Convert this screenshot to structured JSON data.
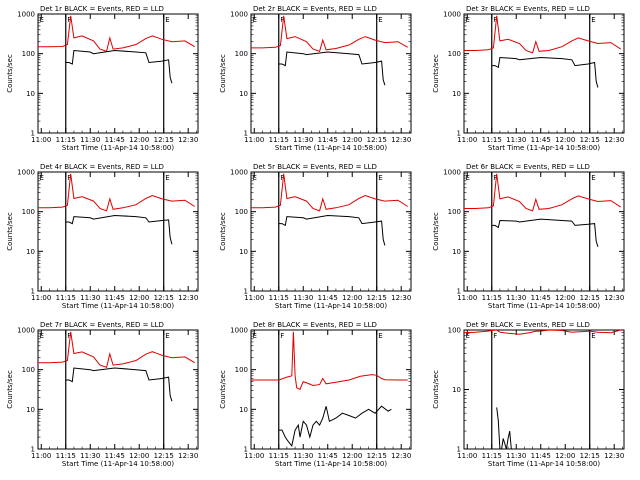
{
  "colors": {
    "events": "#000000",
    "lld": "#e00000",
    "axis": "#000000",
    "background": "#ffffff"
  },
  "chart_data": [
    {
      "type": "line",
      "title": "Det 1r BLACK = Events, RED = LLD",
      "xlabel": "Start Time (11-Apr-14 10:58:00)",
      "ylabel": "Counts/sec",
      "x_ticks": [
        "11:00",
        "11:15",
        "11:30",
        "11:45",
        "12:00",
        "12:15",
        "12:30"
      ],
      "y_ticks": [
        "1",
        "10",
        "100",
        "1000"
      ],
      "y_scale": "log",
      "ylim": [
        1,
        1000
      ],
      "markers": [
        {
          "label": "F",
          "x": "11:15"
        },
        {
          "label": "E",
          "x": "12:15"
        }
      ],
      "series": [
        {
          "color": "red",
          "x": [
            "10:58",
            "11:05",
            "11:13",
            "11:16",
            "11:18",
            "11:20",
            "11:25",
            "11:32",
            "11:36",
            "11:40",
            "11:42",
            "11:44",
            "11:50",
            "11:58",
            "12:04",
            "12:08",
            "12:14",
            "12:20",
            "12:28",
            "12:34"
          ],
          "values": [
            150,
            150,
            152,
            170,
            900,
            250,
            280,
            210,
            130,
            115,
            250,
            130,
            140,
            170,
            240,
            280,
            230,
            200,
            210,
            150
          ]
        },
        {
          "color": "black",
          "x": [
            "11:15",
            "11:17",
            "11:19",
            "11:20",
            "11:30",
            "11:32",
            "11:45",
            "11:58",
            "12:04",
            "12:06",
            "12:14",
            "12:18",
            "12:19",
            "12:20"
          ],
          "values": [
            60,
            60,
            55,
            120,
            110,
            100,
            120,
            110,
            105,
            60,
            65,
            70,
            25,
            18
          ]
        }
      ]
    },
    {
      "type": "line",
      "title": "Det 2r BLACK = Events, RED = LLD",
      "xlabel": "Start Time (11-Apr-14 10:58:00)",
      "ylabel": "Counts/sec",
      "x_ticks": [
        "11:00",
        "11:15",
        "11:30",
        "11:45",
        "12:00",
        "12:15",
        "12:30"
      ],
      "y_ticks": [
        "1",
        "10",
        "100",
        "1000"
      ],
      "y_scale": "log",
      "ylim": [
        1,
        1000
      ],
      "markers": [
        {
          "label": "F",
          "x": "11:15"
        },
        {
          "label": "E",
          "x": "12:15"
        }
      ],
      "series": [
        {
          "color": "red",
          "x": [
            "10:58",
            "11:05",
            "11:13",
            "11:16",
            "11:18",
            "11:20",
            "11:25",
            "11:32",
            "11:36",
            "11:40",
            "11:42",
            "11:44",
            "11:50",
            "11:58",
            "12:04",
            "12:08",
            "12:14",
            "12:20",
            "12:28",
            "12:34"
          ],
          "values": [
            140,
            140,
            145,
            160,
            900,
            240,
            270,
            200,
            130,
            115,
            220,
            125,
            135,
            165,
            230,
            270,
            220,
            190,
            200,
            145
          ]
        },
        {
          "color": "black",
          "x": [
            "11:15",
            "11:17",
            "11:19",
            "11:20",
            "11:30",
            "11:32",
            "11:45",
            "11:58",
            "12:04",
            "12:06",
            "12:14",
            "12:18",
            "12:19",
            "12:20"
          ],
          "values": [
            55,
            55,
            50,
            110,
            100,
            95,
            110,
            100,
            95,
            55,
            60,
            65,
            22,
            16
          ]
        }
      ]
    },
    {
      "type": "line",
      "title": "Det 3r BLACK = Events, RED = LLD",
      "xlabel": "Start Time (11-Apr-14 10:58:00)",
      "ylabel": "Counts/sec",
      "x_ticks": [
        "11:00",
        "11:15",
        "11:30",
        "11:45",
        "12:00",
        "12:15",
        "12:30"
      ],
      "y_ticks": [
        "1",
        "10",
        "100",
        "1000"
      ],
      "y_scale": "log",
      "ylim": [
        1,
        1000
      ],
      "markers": [
        {
          "label": "F",
          "x": "11:15"
        },
        {
          "label": "E",
          "x": "12:15"
        }
      ],
      "series": [
        {
          "color": "red",
          "x": [
            "10:58",
            "11:05",
            "11:13",
            "11:16",
            "11:18",
            "11:20",
            "11:25",
            "11:32",
            "11:36",
            "11:40",
            "11:42",
            "11:44",
            "11:50",
            "11:58",
            "12:04",
            "12:08",
            "12:14",
            "12:20",
            "12:28",
            "12:34"
          ],
          "values": [
            120,
            120,
            125,
            140,
            900,
            210,
            230,
            180,
            120,
            105,
            200,
            115,
            120,
            150,
            210,
            250,
            210,
            180,
            190,
            130
          ]
        },
        {
          "color": "black",
          "x": [
            "11:15",
            "11:17",
            "11:19",
            "11:20",
            "11:30",
            "11:32",
            "11:45",
            "11:58",
            "12:04",
            "12:06",
            "12:14",
            "12:18",
            "12:19",
            "12:20"
          ],
          "values": [
            50,
            50,
            45,
            80,
            75,
            70,
            80,
            75,
            70,
            50,
            55,
            60,
            20,
            14
          ]
        }
      ]
    },
    {
      "type": "line",
      "title": "Det 4r BLACK = Events, RED = LLD",
      "xlabel": "Start Time (11-Apr-14 10:58:00)",
      "ylabel": "Counts/sec",
      "x_ticks": [
        "11:00",
        "11:15",
        "11:30",
        "11:45",
        "12:00",
        "12:15",
        "12:30"
      ],
      "y_ticks": [
        "1",
        "10",
        "100",
        "1000"
      ],
      "y_scale": "log",
      "ylim": [
        1,
        1000
      ],
      "markers": [
        {
          "label": "F",
          "x": "11:15"
        },
        {
          "label": "E",
          "x": "12:15"
        }
      ],
      "series": [
        {
          "color": "red",
          "x": [
            "10:58",
            "11:05",
            "11:13",
            "11:16",
            "11:18",
            "11:20",
            "11:25",
            "11:32",
            "11:36",
            "11:40",
            "11:42",
            "11:44",
            "11:50",
            "11:58",
            "12:04",
            "12:08",
            "12:14",
            "12:20",
            "12:28",
            "12:34"
          ],
          "values": [
            125,
            125,
            130,
            145,
            900,
            215,
            240,
            185,
            120,
            105,
            210,
            115,
            125,
            150,
            215,
            255,
            210,
            185,
            195,
            135
          ]
        },
        {
          "color": "black",
          "x": [
            "11:15",
            "11:17",
            "11:19",
            "11:20",
            "11:30",
            "11:32",
            "11:45",
            "11:58",
            "12:04",
            "12:06",
            "12:14",
            "12:18",
            "12:19",
            "12:20"
          ],
          "values": [
            55,
            55,
            50,
            75,
            70,
            65,
            80,
            75,
            70,
            55,
            60,
            62,
            22,
            15
          ]
        }
      ]
    },
    {
      "type": "line",
      "title": "Det 5r BLACK = Events, RED = LLD",
      "xlabel": "Start Time (11-Apr-14 10:58:00)",
      "ylabel": "Counts/sec",
      "x_ticks": [
        "11:00",
        "11:15",
        "11:30",
        "11:45",
        "12:00",
        "12:15",
        "12:30"
      ],
      "y_ticks": [
        "1",
        "10",
        "100",
        "1000"
      ],
      "y_scale": "log",
      "ylim": [
        1,
        1000
      ],
      "markers": [
        {
          "label": "F",
          "x": "11:15"
        },
        {
          "label": "E",
          "x": "12:15"
        }
      ],
      "series": [
        {
          "color": "red",
          "x": [
            "10:58",
            "11:05",
            "11:13",
            "11:16",
            "11:18",
            "11:20",
            "11:25",
            "11:32",
            "11:36",
            "11:40",
            "11:42",
            "11:44",
            "11:50",
            "11:58",
            "12:04",
            "12:08",
            "12:14",
            "12:20",
            "12:28",
            "12:34"
          ],
          "values": [
            125,
            125,
            130,
            145,
            900,
            215,
            240,
            185,
            120,
            105,
            210,
            115,
            125,
            150,
            215,
            255,
            210,
            185,
            195,
            135
          ]
        },
        {
          "color": "black",
          "x": [
            "11:15",
            "11:17",
            "11:19",
            "11:20",
            "11:30",
            "11:32",
            "11:45",
            "11:58",
            "12:04",
            "12:06",
            "12:14",
            "12:18",
            "12:19",
            "12:20"
          ],
          "values": [
            50,
            50,
            45,
            75,
            70,
            65,
            80,
            75,
            70,
            50,
            55,
            58,
            20,
            14
          ]
        }
      ]
    },
    {
      "type": "line",
      "title": "Det 6r BLACK = Events, RED = LLD",
      "xlabel": "Start Time (11-Apr-14 10:58:00)",
      "ylabel": "Counts/sec",
      "x_ticks": [
        "11:00",
        "11:15",
        "11:30",
        "11:45",
        "12:00",
        "12:15",
        "12:30"
      ],
      "y_ticks": [
        "1",
        "10",
        "100",
        "1000"
      ],
      "y_scale": "log",
      "ylim": [
        1,
        1000
      ],
      "markers": [
        {
          "label": "F",
          "x": "11:15"
        },
        {
          "label": "E",
          "x": "12:15"
        }
      ],
      "series": [
        {
          "color": "red",
          "x": [
            "10:58",
            "11:05",
            "11:13",
            "11:16",
            "11:18",
            "11:20",
            "11:25",
            "11:32",
            "11:36",
            "11:40",
            "11:42",
            "11:44",
            "11:50",
            "11:58",
            "12:04",
            "12:08",
            "12:14",
            "12:20",
            "12:28",
            "12:34"
          ],
          "values": [
            120,
            120,
            125,
            140,
            900,
            210,
            235,
            180,
            120,
            105,
            205,
            115,
            120,
            150,
            210,
            250,
            210,
            180,
            190,
            130
          ]
        },
        {
          "color": "black",
          "x": [
            "11:15",
            "11:17",
            "11:19",
            "11:20",
            "11:30",
            "11:32",
            "11:45",
            "11:58",
            "12:04",
            "12:06",
            "12:14",
            "12:18",
            "12:19",
            "12:20"
          ],
          "values": [
            45,
            45,
            40,
            60,
            58,
            55,
            65,
            60,
            58,
            45,
            48,
            50,
            18,
            13
          ]
        }
      ]
    },
    {
      "type": "line",
      "title": "Det 7r BLACK = Events, RED = LLD",
      "xlabel": "Start Time (11-Apr-14 10:58:00)",
      "ylabel": "Counts/sec",
      "x_ticks": [
        "11:00",
        "11:15",
        "11:30",
        "11:45",
        "12:00",
        "12:15",
        "12:30"
      ],
      "y_ticks": [
        "1",
        "10",
        "100",
        "1000"
      ],
      "y_scale": "log",
      "ylim": [
        1,
        1000
      ],
      "markers": [
        {
          "label": "F",
          "x": "11:15"
        },
        {
          "label": "E",
          "x": "12:15"
        }
      ],
      "series": [
        {
          "color": "red",
          "x": [
            "10:58",
            "11:05",
            "11:13",
            "11:16",
            "11:18",
            "11:20",
            "11:25",
            "11:32",
            "11:36",
            "11:40",
            "11:42",
            "11:44",
            "11:50",
            "11:58",
            "12:04",
            "12:08",
            "12:14",
            "12:20",
            "12:28",
            "12:34"
          ],
          "values": [
            150,
            150,
            155,
            170,
            900,
            255,
            280,
            210,
            130,
            115,
            250,
            130,
            140,
            170,
            245,
            285,
            230,
            200,
            210,
            150
          ]
        },
        {
          "color": "black",
          "x": [
            "11:15",
            "11:17",
            "11:19",
            "11:20",
            "11:30",
            "11:32",
            "11:45",
            "11:58",
            "12:04",
            "12:06",
            "12:14",
            "12:18",
            "12:19",
            "12:20"
          ],
          "values": [
            55,
            55,
            50,
            110,
            100,
            95,
            110,
            100,
            95,
            55,
            60,
            65,
            22,
            16
          ]
        }
      ]
    },
    {
      "type": "line",
      "title": "Det 8r BLACK = Events, RED = LLD",
      "xlabel": "Start Time (11-Apr-14 10:58:00)",
      "ylabel": "Counts/sec",
      "x_ticks": [
        "11:00",
        "11:15",
        "11:30",
        "11:45",
        "12:00",
        "12:15",
        "12:30"
      ],
      "y_ticks": [
        "1",
        "10",
        "100",
        "1000"
      ],
      "y_scale": "log",
      "ylim": [
        1,
        1000
      ],
      "markers": [
        {
          "label": "F",
          "x": "11:15"
        },
        {
          "label": "E",
          "x": "12:15"
        }
      ],
      "series": [
        {
          "color": "red",
          "x": [
            "10:58",
            "11:05",
            "11:15",
            "11:20",
            "11:23",
            "11:24",
            "11:25",
            "11:26",
            "11:28",
            "11:30",
            "11:33",
            "11:36",
            "11:40",
            "11:42",
            "11:44",
            "11:50",
            "11:58",
            "12:05",
            "12:12",
            "12:15",
            "12:18",
            "12:20",
            "12:28",
            "12:34"
          ],
          "values": [
            55,
            55,
            55,
            65,
            70,
            900,
            70,
            35,
            32,
            50,
            45,
            40,
            42,
            60,
            44,
            48,
            55,
            68,
            75,
            72,
            60,
            56,
            55,
            55
          ]
        },
        {
          "color": "black",
          "x": [
            "11:15",
            "11:17",
            "11:19",
            "11:21",
            "11:23",
            "11:25",
            "11:27",
            "11:28",
            "11:30",
            "11:32",
            "11:34",
            "11:36",
            "11:38",
            "11:40",
            "11:42",
            "11:44",
            "11:46",
            "11:50",
            "11:54",
            "11:58",
            "12:02",
            "12:06",
            "12:10",
            "12:14",
            "12:18",
            "12:22",
            "12:24"
          ],
          "values": [
            3,
            3,
            2,
            1.5,
            1.2,
            3,
            4,
            2,
            5,
            4,
            2,
            4,
            5,
            4,
            6,
            12,
            5,
            6,
            8,
            7,
            6,
            8,
            10,
            8,
            12,
            9,
            10
          ]
        }
      ]
    },
    {
      "type": "line",
      "title": "Det 9r BLACK = Events, RED = LLD",
      "xlabel": "Start Time (11-Apr-14 10:58:00)",
      "ylabel": "Counts/sec",
      "x_ticks": [
        "11:00",
        "11:15",
        "11:30",
        "11:45",
        "12:00",
        "12:15",
        "12:30"
      ],
      "y_ticks": [
        "1",
        "10",
        "100"
      ],
      "y_scale": "log",
      "ylim": [
        1,
        100
      ],
      "markers": [
        {
          "label": "F",
          "x": "11:15"
        },
        {
          "label": "E",
          "x": "12:15"
        }
      ],
      "series": [
        {
          "color": "red",
          "x": [
            "10:58",
            "11:05",
            "11:12",
            "11:15",
            "11:18",
            "11:20",
            "11:25",
            "11:32",
            "11:38",
            "11:42",
            "11:45",
            "11:50",
            "11:58",
            "12:04",
            "12:10",
            "12:15",
            "12:20",
            "12:28",
            "12:34"
          ],
          "values": [
            90,
            92,
            95,
            98,
            100,
            92,
            88,
            85,
            90,
            95,
            96,
            100,
            98,
            92,
            94,
            96,
            92,
            90,
            100
          ]
        },
        {
          "color": "black",
          "x": [
            "11:18",
            "11:19",
            "11:20",
            "11:21",
            "11:22",
            "11:24",
            "11:25",
            "11:26",
            "11:27"
          ],
          "values": [
            5,
            3,
            1,
            1,
            1.5,
            1,
            1.5,
            2,
            1
          ]
        }
      ]
    }
  ]
}
